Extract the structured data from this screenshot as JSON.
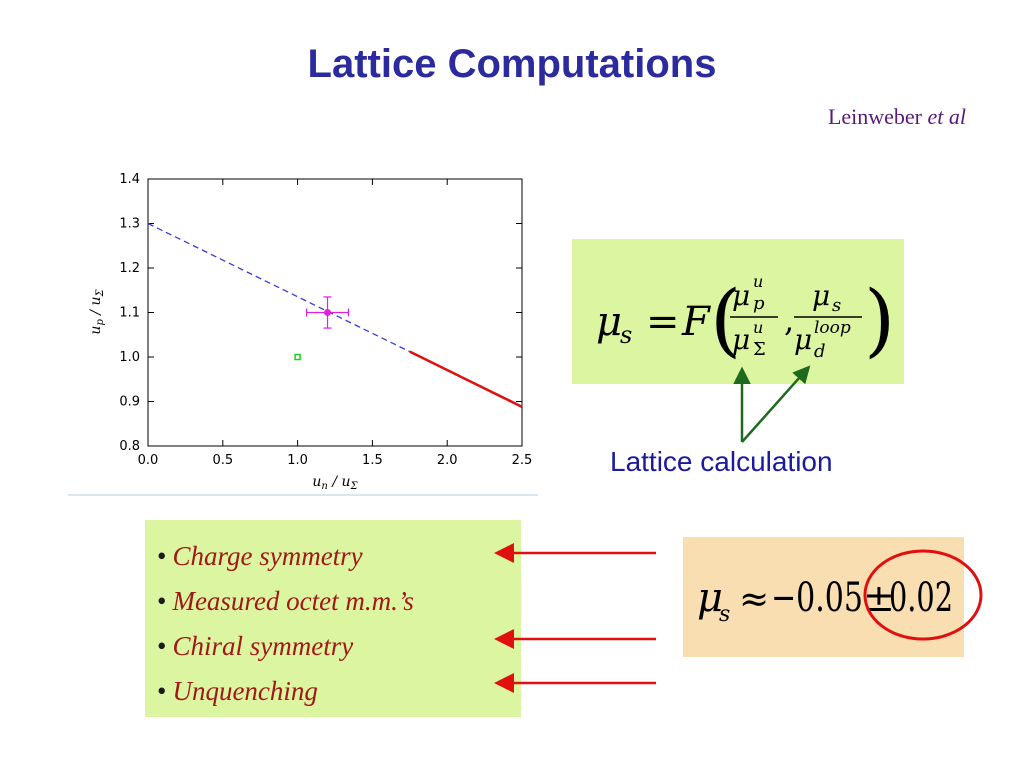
{
  "slide": {
    "title": "Lattice Computations",
    "author_name": "Leinweber",
    "author_suffix": "et al",
    "lattice_label": "Lattice calculation",
    "bullets": [
      "Charge symmetry",
      "Measured octet m.m.’s",
      "Chiral symmetry",
      "Unquenching"
    ],
    "formula": {
      "lhs": "μ",
      "lhs_sub": "s",
      "eq": "=",
      "func": "F",
      "frac1_num": "μ",
      "frac1_num_sup": "u",
      "frac1_num_sub": "p",
      "frac1_den": "μ",
      "frac1_den_sup": "u",
      "frac1_den_sub": "Σ",
      "comma": ",",
      "frac2_num": "μ",
      "frac2_num_sub": "s",
      "frac2_den": "μ",
      "frac2_den_sup": "loop",
      "frac2_den_sub": "d"
    },
    "result": {
      "symbol": "μ",
      "sub": "s",
      "approx": "≈",
      "value": "−0.05",
      "pm": "±",
      "error": "0.02"
    },
    "colors": {
      "title": "#2b2b9e",
      "green_box": "#dcf5a0",
      "tan_box": "#f8deb0",
      "red": "#e01010",
      "dark_green": "#1e6a1e",
      "list_text": "#a01818"
    }
  },
  "chart_data": {
    "type": "scatter",
    "xlabel": "u_n / u_Σ",
    "ylabel": "u_p / u_Σ",
    "xlim": [
      0.0,
      2.5
    ],
    "ylim": [
      0.8,
      1.4
    ],
    "xticks": [
      "0.0",
      "0.5",
      "1.0",
      "1.5",
      "2.0",
      "2.5"
    ],
    "yticks": [
      "0.8",
      "0.9",
      "1.0",
      "1.1",
      "1.2",
      "1.3",
      "1.4"
    ],
    "series": [
      {
        "kind": "dashed-line",
        "color": "#3a3ae6",
        "x": [
          0.0,
          1.75
        ],
        "y": [
          1.3,
          1.012
        ]
      },
      {
        "kind": "solid-line",
        "color": "#e01010",
        "x": [
          1.75,
          2.5
        ],
        "y": [
          1.012,
          0.888
        ]
      },
      {
        "kind": "point-with-error",
        "color": "#e020e0",
        "x": [
          1.2
        ],
        "y": [
          1.1
        ],
        "xerr": [
          0.14
        ],
        "yerr": [
          0.035
        ]
      },
      {
        "kind": "point",
        "color": "#20d020",
        "x": [
          1.0
        ],
        "y": [
          1.0
        ]
      }
    ]
  }
}
